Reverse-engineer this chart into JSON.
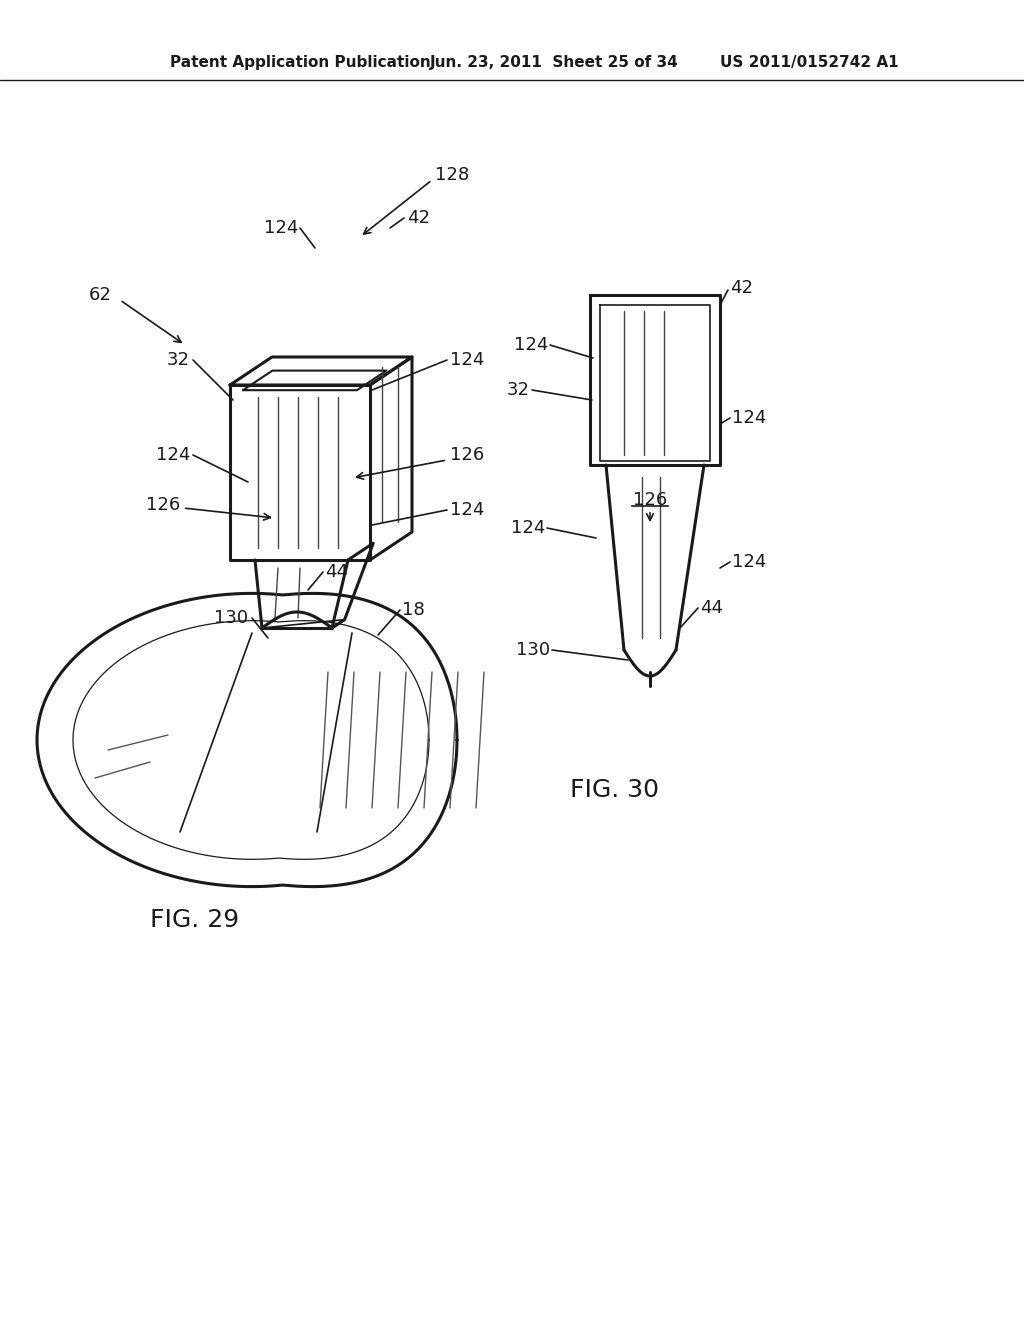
{
  "bg_color": "#ffffff",
  "line_color": "#1a1a1a",
  "header_text": "Patent Application Publication",
  "header_date": "Jun. 23, 2011  Sheet 25 of 34",
  "header_patent": "US 2011/0152742 A1",
  "fig29_label": "FIG. 29",
  "fig30_label": "FIG. 30"
}
